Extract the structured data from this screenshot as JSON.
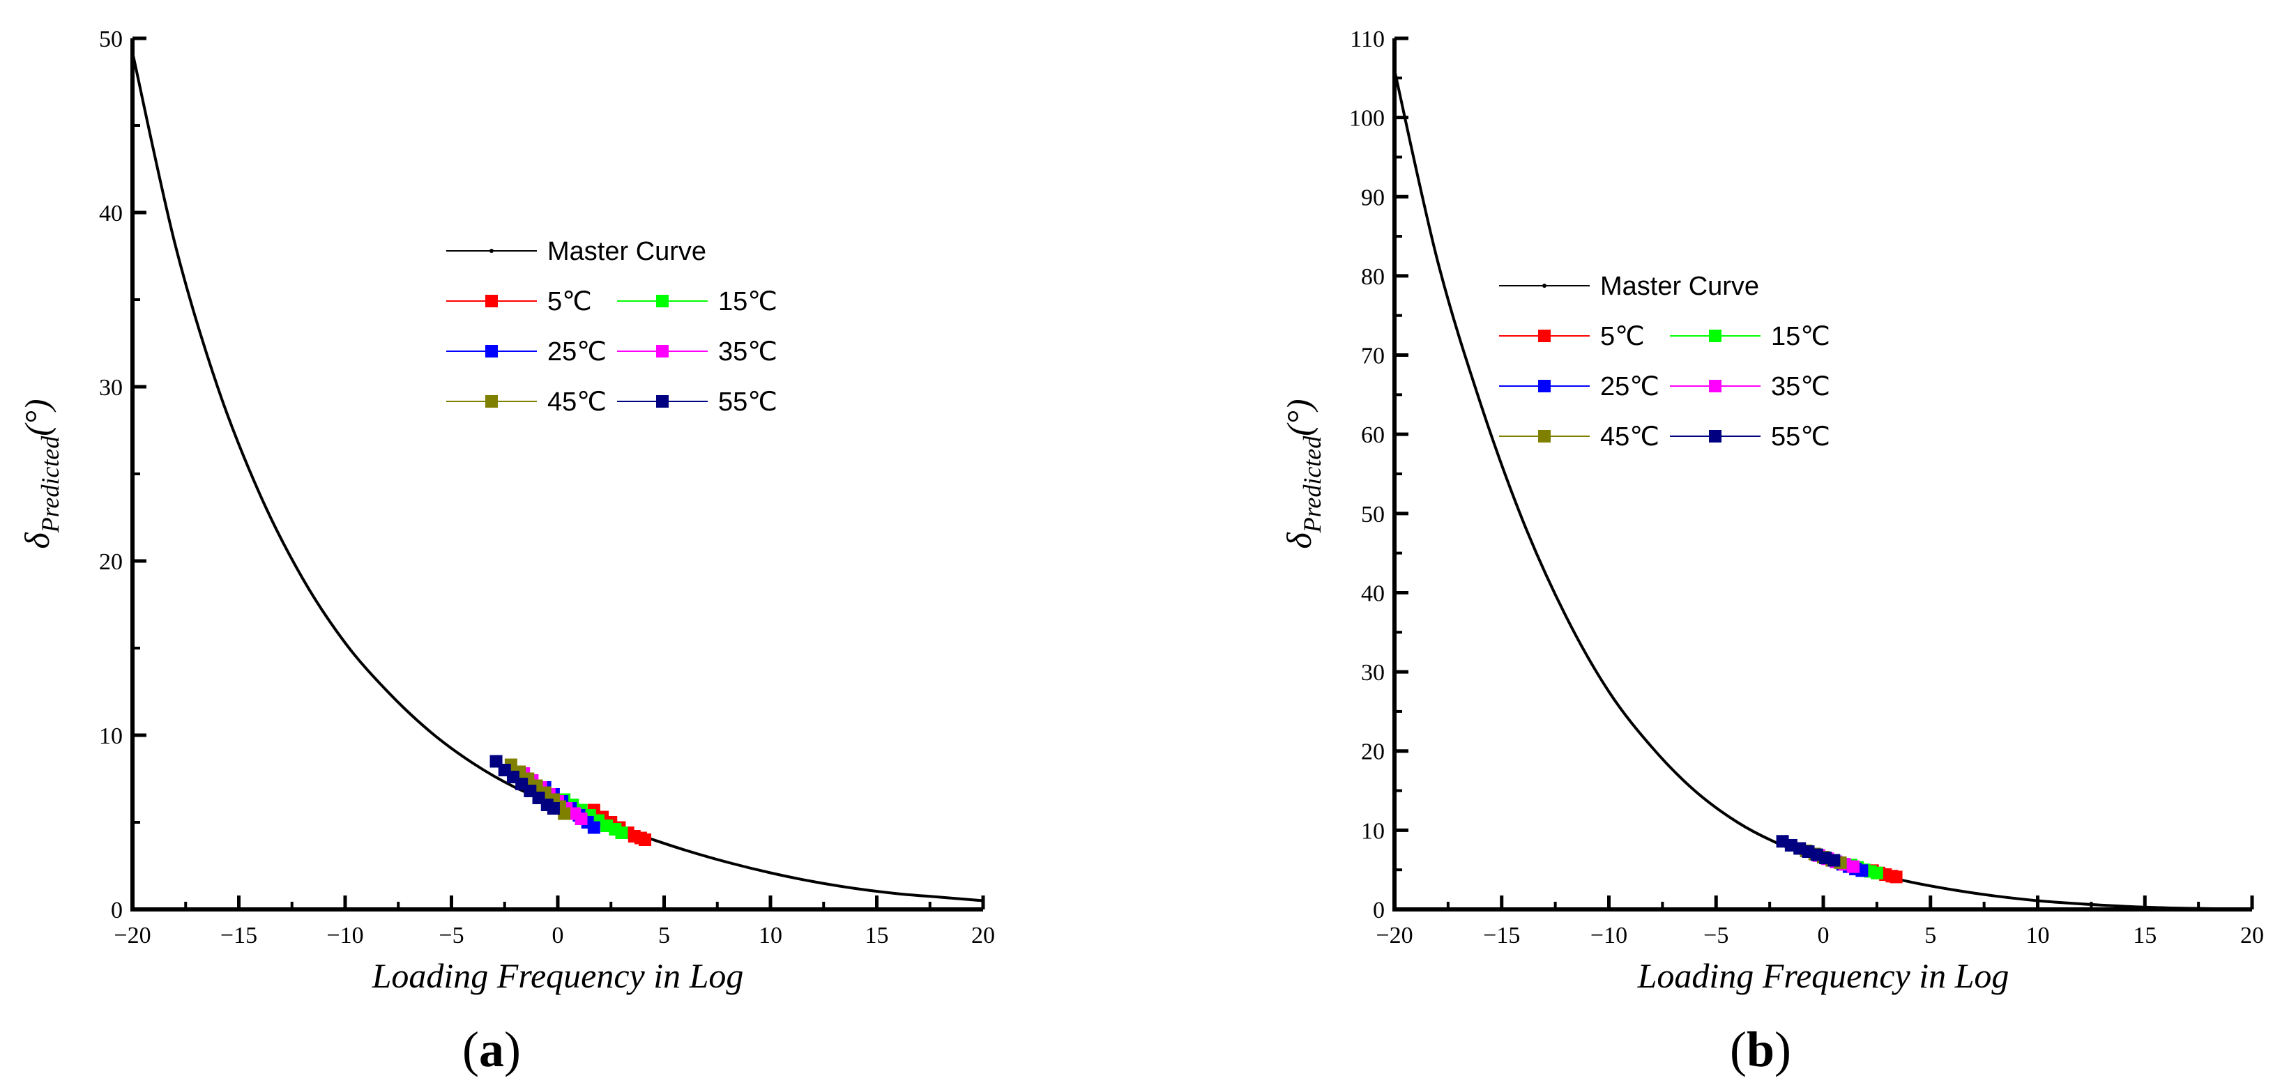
{
  "chart_data": [
    {
      "type": "scatter",
      "panel": "(a)",
      "panel_open": "(",
      "panel_letter": "a",
      "panel_close": ")",
      "xlabel": "Loading Frequency in Log",
      "ylabel_main": "δ",
      "ylabel_sub": "Predicted",
      "ylabel_unit": "(°)",
      "xlim": [
        -20,
        20
      ],
      "ylim": [
        0,
        50
      ],
      "xticks": [
        -20,
        -15,
        -10,
        -5,
        0,
        5,
        10,
        15,
        20
      ],
      "yticks": [
        0,
        10,
        20,
        30,
        40,
        50
      ],
      "master_curve": {
        "name": "Master Curve",
        "color": "#000000",
        "x": [
          -20,
          -18,
          -16,
          -14,
          -12,
          -10,
          -8,
          -6,
          -4,
          -2,
          0,
          2,
          4,
          6,
          8,
          10,
          12,
          14,
          16,
          18,
          20
        ],
        "y": [
          49.2,
          38.2,
          30.0,
          23.8,
          19.0,
          15.3,
          12.5,
          10.2,
          8.4,
          7.0,
          6.0,
          5.0,
          4.2,
          3.4,
          2.7,
          2.1,
          1.6,
          1.2,
          0.9,
          0.7,
          0.5
        ]
      },
      "series": [
        {
          "name": "5℃",
          "color": "#ff0000",
          "x": [
            1.7,
            2.1,
            2.5,
            2.9,
            3.3,
            3.6,
            3.9,
            4.1
          ],
          "y": [
            5.7,
            5.3,
            5.0,
            4.7,
            4.4,
            4.2,
            4.1,
            4.0
          ]
        },
        {
          "name": "15℃",
          "color": "#00ff00",
          "x": [
            0.3,
            0.7,
            1.1,
            1.5,
            1.9,
            2.3,
            2.7,
            3.0
          ],
          "y": [
            6.3,
            6.0,
            5.7,
            5.4,
            5.1,
            4.8,
            4.6,
            4.4
          ]
        },
        {
          "name": "25℃",
          "color": "#0000ff",
          "x": [
            -0.6,
            -0.2,
            0.2,
            0.6,
            1.0,
            1.4,
            1.7
          ],
          "y": [
            7.0,
            6.6,
            6.2,
            5.8,
            5.4,
            5.0,
            4.7
          ]
        },
        {
          "name": "35℃",
          "color": "#ff00ff",
          "x": [
            -1.6,
            -1.2,
            -0.8,
            -0.4,
            0.0,
            0.4,
            0.8,
            1.1
          ],
          "y": [
            7.8,
            7.4,
            7.0,
            6.6,
            6.2,
            5.8,
            5.5,
            5.2
          ]
        },
        {
          "name": "45℃",
          "color": "#808000",
          "x": [
            -2.2,
            -1.8,
            -1.4,
            -1.0,
            -0.6,
            -0.2,
            0.1,
            0.3
          ],
          "y": [
            8.3,
            7.9,
            7.5,
            7.1,
            6.7,
            6.3,
            5.9,
            5.5
          ]
        },
        {
          "name": "55℃",
          "color": "#000080",
          "x": [
            -2.9,
            -2.5,
            -2.1,
            -1.7,
            -1.3,
            -0.9,
            -0.5,
            -0.2
          ],
          "y": [
            8.5,
            8.0,
            7.6,
            7.2,
            6.8,
            6.4,
            6.0,
            5.8
          ]
        }
      ]
    },
    {
      "type": "scatter",
      "panel": "(b)",
      "panel_open": "(",
      "panel_letter": "b",
      "panel_close": ")",
      "xlabel": "Loading Frequency in Log",
      "ylabel_main": "δ",
      "ylabel_sub": "Predicted",
      "ylabel_unit": "(°)",
      "xlim": [
        -20,
        20
      ],
      "ylim": [
        0,
        110
      ],
      "xticks": [
        -20,
        -15,
        -10,
        -5,
        0,
        5,
        10,
        15,
        20
      ],
      "yticks": [
        0,
        10,
        20,
        30,
        40,
        50,
        60,
        70,
        80,
        90,
        100,
        110
      ],
      "master_curve": {
        "name": "Master Curve",
        "color": "#000000",
        "x": [
          -20,
          -18,
          -16,
          -14,
          -12,
          -10,
          -8,
          -6,
          -4,
          -2,
          0,
          2,
          4,
          6,
          8,
          10,
          12,
          14,
          16,
          18,
          20
        ],
        "y": [
          106.0,
          82.0,
          64.0,
          49.0,
          37.0,
          27.5,
          20.5,
          15.0,
          11.0,
          8.2,
          6.3,
          4.8,
          3.5,
          2.5,
          1.7,
          1.1,
          0.7,
          0.4,
          0.2,
          0.1,
          0.0
        ]
      },
      "series": [
        {
          "name": "5℃",
          "color": "#ff0000",
          "x": [
            2.3,
            2.6,
            2.9,
            3.2,
            3.4
          ],
          "y": [
            4.9,
            4.6,
            4.4,
            4.2,
            4.1
          ]
        },
        {
          "name": "15℃",
          "color": "#00ff00",
          "x": [
            1.3,
            1.6,
            1.9,
            2.2,
            2.5
          ],
          "y": [
            5.6,
            5.3,
            5.0,
            4.8,
            4.6
          ]
        },
        {
          "name": "25℃",
          "color": "#0000ff",
          "x": [
            0.6,
            0.9,
            1.2,
            1.5,
            1.8
          ],
          "y": [
            6.0,
            5.7,
            5.4,
            5.1,
            4.9
          ]
        },
        {
          "name": "35℃",
          "color": "#ff00ff",
          "x": [
            -0.2,
            0.2,
            0.6,
            1.0,
            1.4
          ],
          "y": [
            6.8,
            6.4,
            6.0,
            5.7,
            5.4
          ]
        },
        {
          "name": "45℃",
          "color": "#808000",
          "x": [
            -0.8,
            -0.4,
            0.0,
            0.4,
            0.8
          ],
          "y": [
            7.4,
            7.0,
            6.6,
            6.2,
            5.9
          ]
        },
        {
          "name": "55℃",
          "color": "#000080",
          "x": [
            -1.9,
            -1.5,
            -1.1,
            -0.7,
            -0.3,
            0.1,
            0.5
          ],
          "y": [
            8.6,
            8.1,
            7.7,
            7.3,
            6.9,
            6.5,
            6.2
          ]
        }
      ]
    }
  ]
}
